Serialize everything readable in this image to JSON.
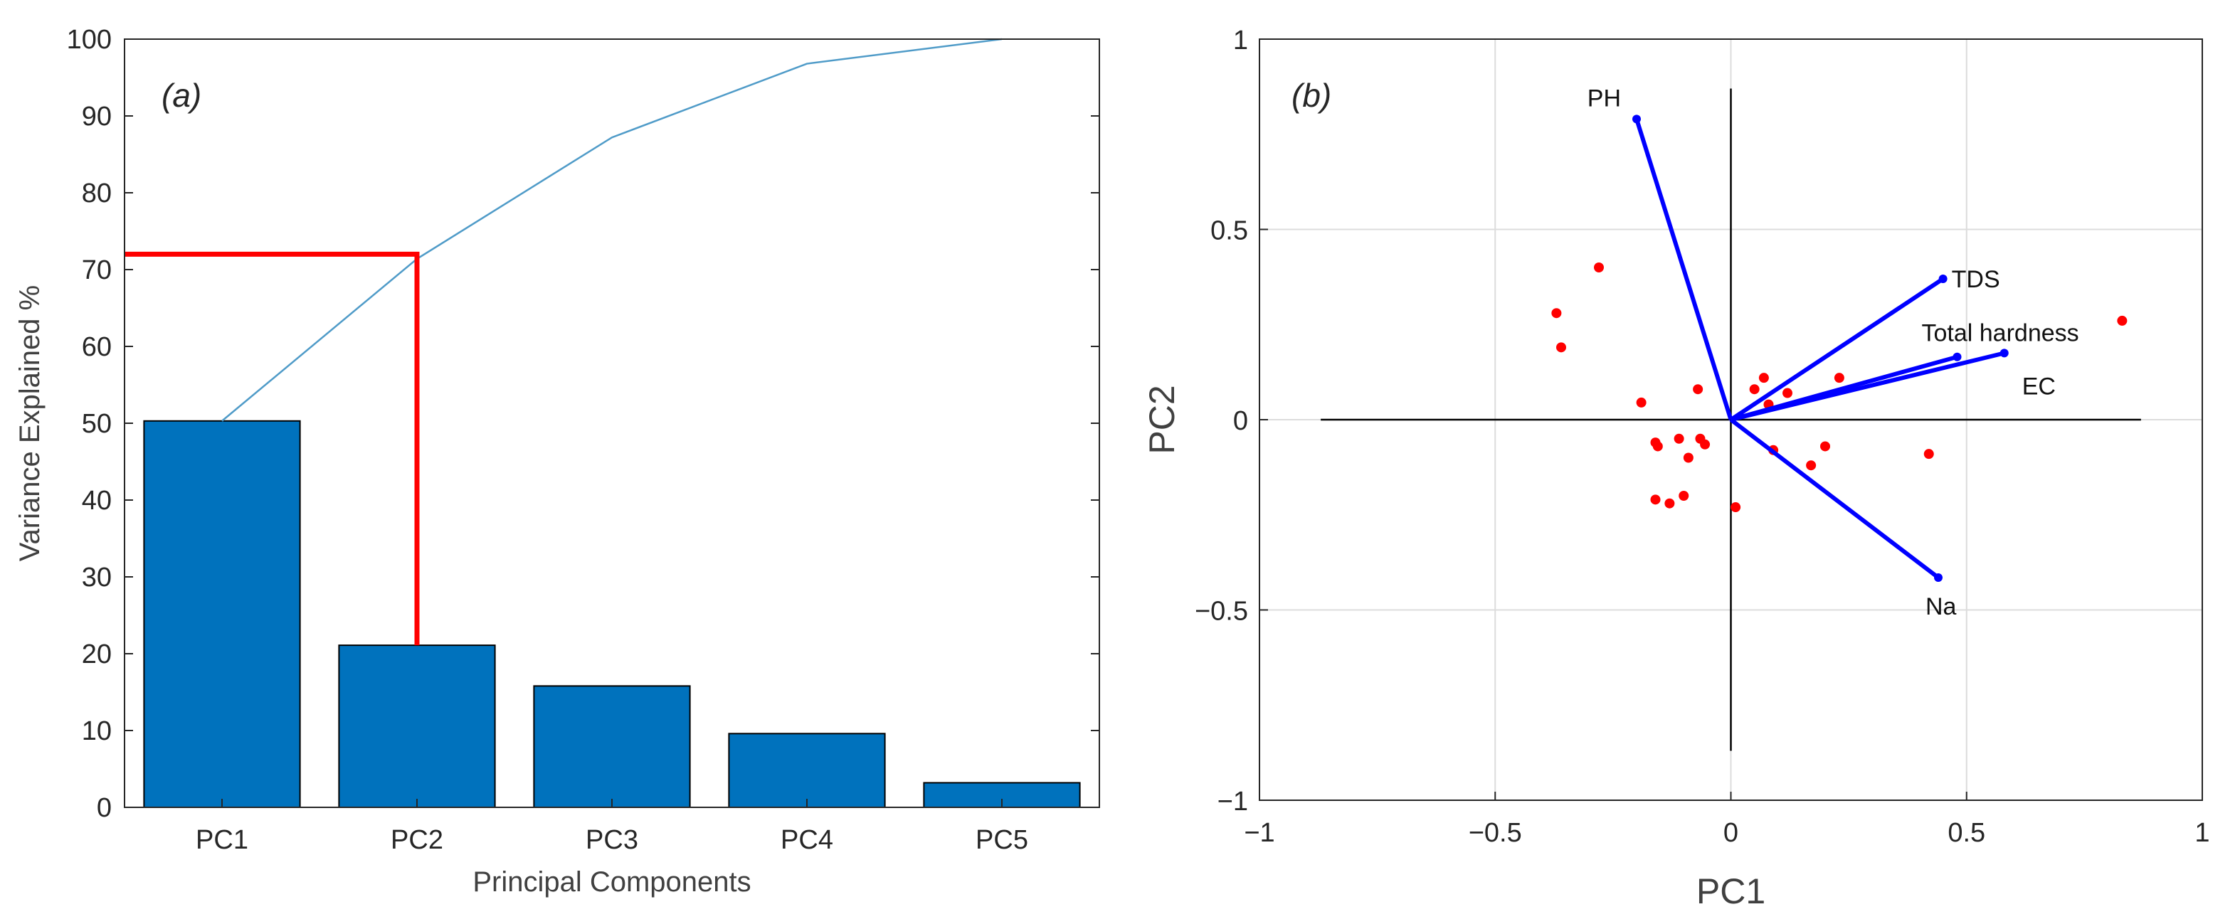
{
  "chart_data": [
    {
      "panel": "(a)",
      "panel_letter": "a",
      "type": "bar",
      "title": "",
      "xlabel": "Principal Components",
      "ylabel": "Variance Explained %",
      "categories": [
        "PC1",
        "PC2",
        "PC3",
        "PC4",
        "PC5"
      ],
      "values": [
        50.3,
        21.1,
        15.8,
        9.6,
        3.2
      ],
      "cumulative": [
        50.3,
        71.4,
        87.2,
        96.8,
        100
      ],
      "ylim": [
        0,
        100
      ],
      "yticks": [
        "0",
        "10",
        "20",
        "30",
        "40",
        "50",
        "60",
        "70",
        "80",
        "90",
        "100"
      ],
      "ytick_values": [
        0,
        10,
        20,
        30,
        40,
        50,
        60,
        70,
        80,
        90,
        100
      ],
      "highlight": {
        "category": "PC2",
        "value": 72
      },
      "colors": {
        "bar": "#0072BD",
        "line": "#4F9BC8",
        "highlight": "#FF0000"
      }
    },
    {
      "panel": "(b)",
      "panel_letter": "b",
      "type": "scatter",
      "title": "",
      "xlabel": "PC1",
      "ylabel": "PC2",
      "xlim": [
        -1,
        1
      ],
      "ylim": [
        -1,
        1
      ],
      "xticks": [
        "−1",
        "−0.5",
        "0",
        "0.5",
        "1"
      ],
      "xtick_values": [
        -1,
        -0.5,
        0,
        0.5,
        1
      ],
      "yticks": [
        "−1",
        "−0.5",
        "0",
        "0.5",
        "1"
      ],
      "ytick_values": [
        -1,
        -0.5,
        0,
        0.5,
        1
      ],
      "grid": true,
      "reference_axes": {
        "x": [
          -0.87,
          0.87
        ],
        "y": [
          -0.87,
          0.87
        ]
      },
      "vectors": [
        {
          "name": "PH",
          "x": -0.2,
          "y": 0.79
        },
        {
          "name": "TDS",
          "x": 0.45,
          "y": 0.37
        },
        {
          "name": "Total hardness",
          "x": 0.48,
          "y": 0.165
        },
        {
          "name": "EC",
          "x": 0.58,
          "y": 0.175
        },
        {
          "name": "Na",
          "x": 0.44,
          "y": -0.415
        }
      ],
      "points": [
        {
          "x": -0.28,
          "y": 0.4
        },
        {
          "x": -0.37,
          "y": 0.28
        },
        {
          "x": -0.36,
          "y": 0.19
        },
        {
          "x": -0.19,
          "y": 0.045
        },
        {
          "x": -0.16,
          "y": -0.06
        },
        {
          "x": -0.155,
          "y": -0.07
        },
        {
          "x": -0.11,
          "y": -0.05
        },
        {
          "x": -0.09,
          "y": -0.1
        },
        {
          "x": -0.065,
          "y": -0.05
        },
        {
          "x": -0.055,
          "y": -0.065
        },
        {
          "x": -0.16,
          "y": -0.21
        },
        {
          "x": -0.13,
          "y": -0.22
        },
        {
          "x": -0.1,
          "y": -0.2
        },
        {
          "x": 0.01,
          "y": -0.23
        },
        {
          "x": -0.07,
          "y": 0.08
        },
        {
          "x": 0.05,
          "y": 0.08
        },
        {
          "x": 0.07,
          "y": 0.11
        },
        {
          "x": 0.08,
          "y": 0.04
        },
        {
          "x": 0.12,
          "y": 0.07
        },
        {
          "x": 0.09,
          "y": -0.08
        },
        {
          "x": 0.17,
          "y": -0.12
        },
        {
          "x": 0.2,
          "y": -0.07
        },
        {
          "x": 0.23,
          "y": 0.11
        },
        {
          "x": 0.42,
          "y": -0.09
        },
        {
          "x": 0.83,
          "y": 0.26
        }
      ],
      "colors": {
        "vector": "#0000FF",
        "point": "#FF0000",
        "axis": "#000000",
        "grid": "#DCDCDC"
      }
    }
  ]
}
